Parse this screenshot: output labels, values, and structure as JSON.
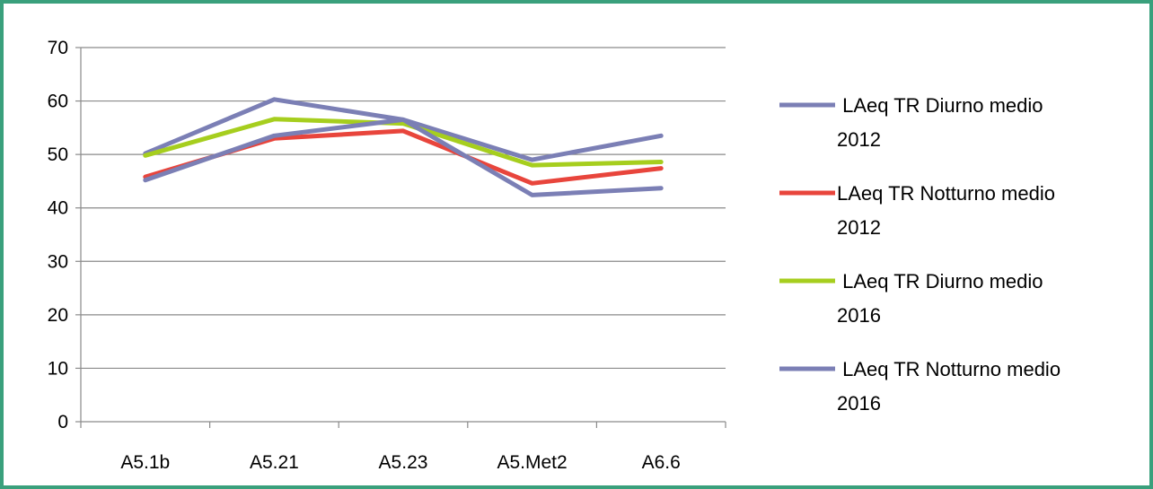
{
  "chart_data": {
    "type": "line",
    "title": "",
    "xlabel": "",
    "ylabel": "",
    "categories": [
      "A5.1b",
      "A5.21",
      "A5.23",
      "A5.Met2",
      "A6.6"
    ],
    "ylim": [
      0,
      70
    ],
    "yticks": [
      0,
      10,
      20,
      30,
      40,
      50,
      60,
      70
    ],
    "grid": "horizontal",
    "legend_position": "right",
    "series": [
      {
        "name": "LAeq TR Diurno medio 2012",
        "legend_lines": [
          " LAeq TR Diurno medio",
          "2012"
        ],
        "color": "#7b7fb5",
        "values": [
          50.2,
          60.3,
          56.5,
          49.0,
          53.5
        ]
      },
      {
        "name": "LAeq TR Notturno medio 2012",
        "legend_lines": [
          "LAeq TR Notturno medio",
          "2012"
        ],
        "color": "#e8453c",
        "values": [
          45.8,
          53.0,
          54.4,
          44.6,
          47.4
        ]
      },
      {
        "name": "LAeq TR Diurno medio 2016",
        "legend_lines": [
          " LAeq TR Diurno medio",
          "2016"
        ],
        "color": "#a6ce1e",
        "values": [
          49.8,
          56.6,
          55.8,
          48.0,
          48.6
        ]
      },
      {
        "name": "LAeq TR Notturno medio 2016",
        "legend_lines": [
          " LAeq TR Notturno medio",
          "2016"
        ],
        "color": "#7b7fb5",
        "values": [
          45.2,
          53.5,
          56.5,
          42.4,
          43.7
        ]
      }
    ]
  }
}
